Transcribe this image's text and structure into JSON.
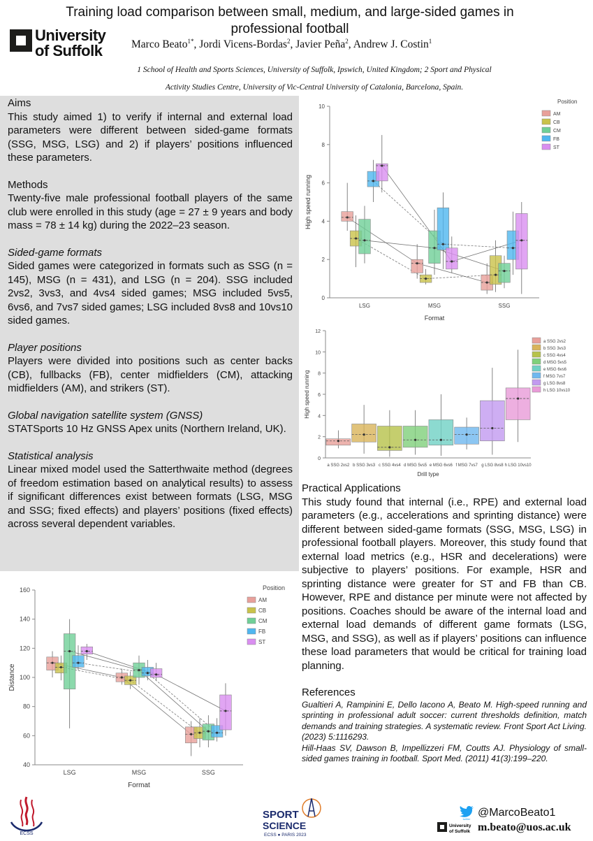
{
  "header": {
    "title": "Training load comparison between small, medium, and large-sided games in professional football",
    "logo_line1": "University",
    "logo_line2": "of Suffolk",
    "authors": [
      {
        "name": "Marco Beato",
        "sup": "1*"
      },
      {
        "name": "Jordi Vicens-Bordas",
        "sup": "2"
      },
      {
        "name": "Javier Peña",
        "sup": "2"
      },
      {
        "name": "Andrew J. Costin",
        "sup": "1"
      }
    ],
    "affiliation_line1": "1 School of Health and Sports Sciences, University of Suffolk, Ipswich, United Kingdom; 2 Sport and Physical",
    "affiliation_line2": "Activity Studies Centre, University of Vic-Central University of Catalonia, Barcelona, Spain."
  },
  "sections": {
    "aims_title": "Aims",
    "aims_text": "This study aimed 1) to verify if internal and external load parameters were different between sided-game formats (SSG, MSG, LSG) and 2) if players’ positions influenced these parameters.",
    "methods_title": "Methods",
    "methods_text": "Twenty-five male professional football players of the same club were enrolled in this study (age = 27 ± 9 years and body mass = 78 ± 14 kg) during the 2022–23 season.",
    "sided_title": "Sided-game formats",
    "sided_text": "Sided games were categorized in formats such as SSG (n = 145), MSG (n = 431), and LSG (n = 204). SSG included 2vs2, 3vs3, and 4vs4 sided games; MSG included 5vs5, 6vs6, and 7vs7 sided games; LSG included 8vs8 and 10vs10 sided games.",
    "positions_title": "Player positions",
    "positions_text": "Players were divided into positions such as center backs (CB), fullbacks (FB), center midfielders (CM), attacking midfielders (AM), and strikers (ST).",
    "gnss_title": "Global navigation satellite system (GNSS)",
    "gnss_text": "STATSports 10 Hz GNSS Apex units (Northern Ireland, UK).",
    "stats_title": "Statistical analysis",
    "stats_text": "Linear mixed model used the Satterthwaite method (degrees of freedom estimation based on analytical results) to assess if significant differences exist between formats (LSG, MSG and SSG; fixed effects) and players’ positions (fixed effects) across several dependent variables.",
    "practical_title": "Practical Applications",
    "practical_text": "This study found that internal (i.e., RPE) and external load parameters (e.g., accelerations and sprinting distance) were different between sided-game formats (SSG, MSG, LSG) in professional football players. Moreover, this study found that external load metrics (e.g., HSR and decelerations) were subjective to players’ positions. For example, HSR and sprinting distance were greater for ST and FB than CB. However, RPE and distance per minute were not affected by positions. Coaches should be aware of the internal load and external load demands of different game formats (LSG, MSG, and SSG), as well as if players’ positions can influence these load parameters that would be critical for training load planning.",
    "references_title": "References",
    "ref1": "Gualtieri A, Rampinini E, Dello Iacono A, Beato M. High-speed running and sprinting in professional adult soccer: current thresholds definition, match demands and training strategies. A systematic review. Front Sport Act Living. (2023) 5:1116293.",
    "ref2": "Hill-Haas SV, Dawson B, Impellizzeri FM, Coutts AJ. Physiology of small-sided games training in football. Sport Med. (2011) 41(3):199–220."
  },
  "footer": {
    "twitter": "@MarcoBeato1",
    "email": "m.beato@uos.ac.uk",
    "ecss_label": "ECSS",
    "sport_science_line1": "SPORT",
    "sport_science_line2": "SCIENCE",
    "sport_science_line3": "ECSS ● PARIS 2023",
    "small_logo_line1": "University",
    "small_logo_line2": "of Suffolk",
    "twitter_small": "twitter"
  },
  "colors": {
    "AM": "#e8a09a",
    "CB": "#c9c24a",
    "CM": "#6fcf97",
    "FB": "#4fb6ef",
    "ST": "#d98ef0"
  },
  "chart_data": [
    {
      "type": "box",
      "ylabel": "High speed running",
      "xlabel": "Format",
      "legend_title": "Position",
      "legend_position": "top-right",
      "ylim": [
        0,
        10
      ],
      "yticks": [
        0,
        2,
        4,
        6,
        8,
        10
      ],
      "categories": [
        "LSG",
        "MSG",
        "SSG"
      ],
      "series": [
        {
          "name": "AM",
          "boxes": [
            [
              3.5,
              4.0,
              4.2,
              4.5,
              6.0
            ],
            [
              1.0,
              1.3,
              1.8,
              2.0,
              2.8
            ],
            [
              0.2,
              0.4,
              0.8,
              1.2,
              1.8
            ]
          ]
        },
        {
          "name": "CB",
          "boxes": [
            [
              1.6,
              2.7,
              3.1,
              3.5,
              4.3
            ],
            [
              0.7,
              0.8,
              1.0,
              1.2,
              1.5
            ],
            [
              0.3,
              0.7,
              1.2,
              2.2,
              3.0
            ]
          ]
        },
        {
          "name": "CM",
          "boxes": [
            [
              1.8,
              2.3,
              3.0,
              4.1,
              4.8
            ],
            [
              1.2,
              1.8,
              2.6,
              3.5,
              4.6
            ],
            [
              0.5,
              0.8,
              1.4,
              1.8,
              2.2
            ]
          ]
        },
        {
          "name": "FB",
          "boxes": [
            [
              5.0,
              5.8,
              6.1,
              6.6,
              7.2
            ],
            [
              1.5,
              2.5,
              2.8,
              4.7,
              5.5
            ],
            [
              1.2,
              2.0,
              2.6,
              3.5,
              4.5
            ]
          ]
        },
        {
          "name": "ST",
          "boxes": [
            [
              5.5,
              6.1,
              6.9,
              7.0,
              8.5
            ],
            [
              1.3,
              1.5,
              1.9,
              2.6,
              3.2
            ],
            [
              0.2,
              1.5,
              3.0,
              4.4,
              5.0
            ]
          ]
        }
      ]
    },
    {
      "type": "box",
      "ylabel": "High speed running",
      "xlabel": "Drill type",
      "legend_position": "top-right",
      "ylim": [
        0,
        12
      ],
      "yticks": [
        0,
        2,
        4,
        6,
        8,
        10,
        12
      ],
      "categories": [
        "a SSG 2vs2",
        "b SSG 3vs3",
        "c SSG 4vs4",
        "d MSG 5vs5",
        "e MSG 6vs6",
        "f MSG 7vs7",
        "g LSG 8vs8",
        "h LSG 10vs10"
      ],
      "colors": [
        "#e8a09a",
        "#d9b45a",
        "#b6c24a",
        "#7fd07a",
        "#6fd1c4",
        "#6fb8ef",
        "#c29af0",
        "#e99bd8"
      ],
      "boxes": [
        [
          0.9,
          1.2,
          1.6,
          1.8,
          2.6
        ],
        [
          0.4,
          1.5,
          2.2,
          3.2,
          5.0
        ],
        [
          0.1,
          0.7,
          1.0,
          3.0,
          4.5
        ],
        [
          0.3,
          1.0,
          1.7,
          3.0,
          4.5
        ],
        [
          0.2,
          1.2,
          1.7,
          3.6,
          6.0
        ],
        [
          0.8,
          1.3,
          2.2,
          2.9,
          3.8
        ],
        [
          0.3,
          1.6,
          2.8,
          5.4,
          8.5
        ],
        [
          1.5,
          3.6,
          5.6,
          6.6,
          10.2
        ]
      ]
    },
    {
      "type": "box",
      "ylabel": "Distance",
      "xlabel": "Format",
      "legend_title": "Position",
      "legend_position": "top-right",
      "ylim": [
        40,
        160
      ],
      "yticks": [
        40,
        60,
        80,
        100,
        120,
        140,
        160
      ],
      "categories": [
        "LSG",
        "MSG",
        "SSG"
      ],
      "series": [
        {
          "name": "AM",
          "boxes": [
            [
              100,
              105,
              110,
              114,
              118
            ],
            [
              95,
              97,
              100,
              103,
              106
            ],
            [
              46,
              55,
              61,
              66,
              70
            ]
          ]
        },
        {
          "name": "CB",
          "boxes": [
            [
              98,
              103,
              107,
              110,
              115
            ],
            [
              92,
              95,
              98,
              101,
              104
            ],
            [
              52,
              58,
              62,
              66,
              72
            ]
          ]
        },
        {
          "name": "CM",
          "boxes": [
            [
              65,
              92,
              118,
              130,
              140
            ],
            [
              95,
              100,
              105,
              110,
              115
            ],
            [
              52,
              57,
              63,
              68,
              74
            ]
          ]
        },
        {
          "name": "FB",
          "boxes": [
            [
              105,
              107,
              110,
              115,
              122
            ],
            [
              98,
              101,
              103,
              107,
              112
            ],
            [
              56,
              59,
              62,
              67,
              72
            ]
          ]
        },
        {
          "name": "ST",
          "boxes": [
            [
              112,
              116,
              118,
              121,
              123
            ],
            [
              98,
              100,
              102,
              106,
              110
            ],
            [
              60,
              64,
              77,
              88,
              96
            ]
          ]
        }
      ]
    }
  ]
}
